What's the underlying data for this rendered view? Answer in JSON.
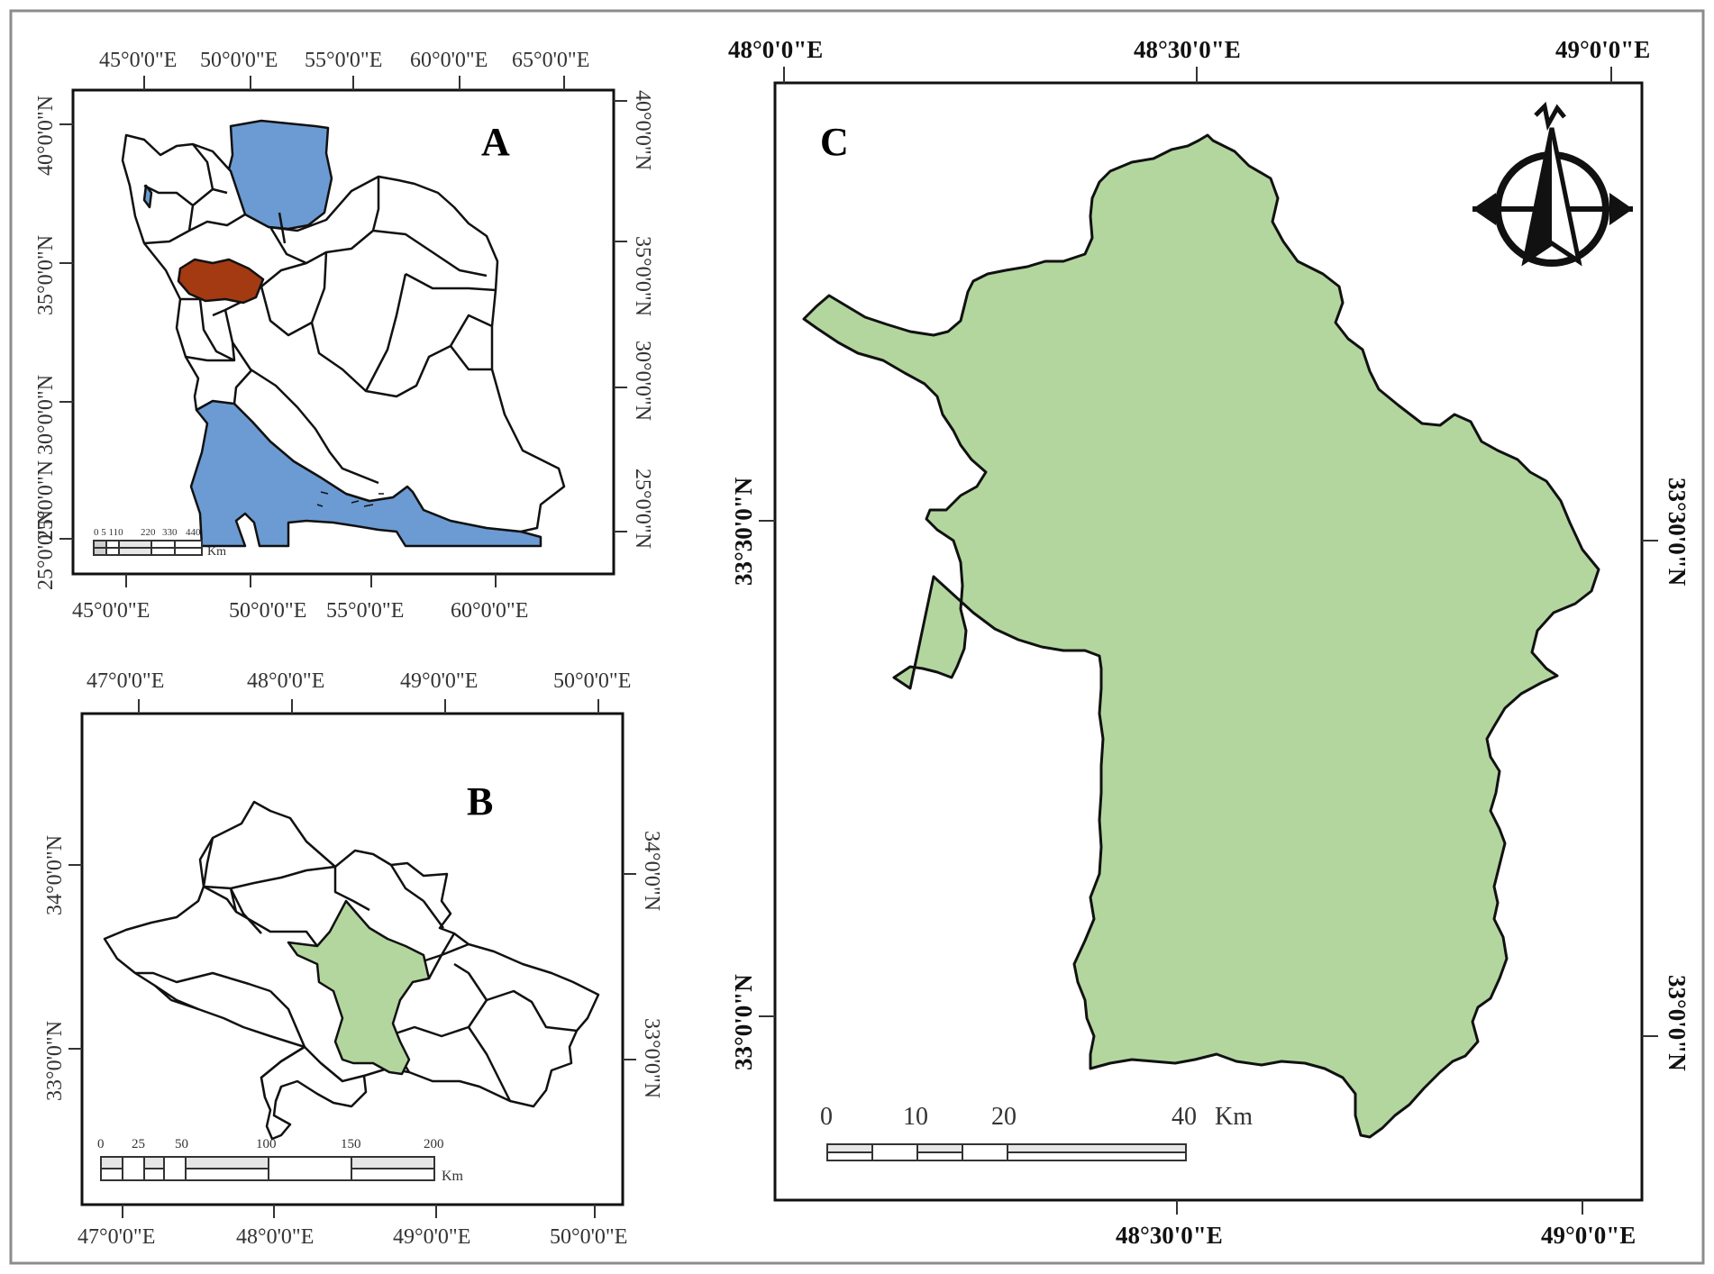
{
  "colors": {
    "frame": "#8c8c8c",
    "study_area_fill": "#b3d69f",
    "water_fill": "#6b9bd2",
    "highlight_province": "#a33a12",
    "boundary_stroke": "#111111"
  },
  "panels": {
    "a": {
      "label": "A",
      "top_ticks": [
        "45°0'0\"E",
        "50°0'0\"E",
        "55°0'0\"E",
        "60°0'0\"E",
        "65°0'0\"E"
      ],
      "bottom_ticks": [
        "45°0'0\"E",
        "50°0'0\"E",
        "55°0'0\"E",
        "60°0'0\"E"
      ],
      "left_ticks": [
        "40°0'0\"N",
        "35°0'0\"N",
        "30°0'0\"N",
        "25°0'0\"N",
        "25°0'0\"N"
      ],
      "right_ticks": [
        "40°0'0\"N",
        "35°0'0\"N",
        "30°0'0\"N",
        "25°0'0\"N"
      ],
      "scale_labels": [
        "0 5 110",
        "220",
        "330",
        "440"
      ],
      "scale_unit": "Km"
    },
    "b": {
      "label": "B",
      "top_ticks": [
        "47°0'0\"E",
        "48°0'0\"E",
        "49°0'0\"E",
        "50°0'0\"E"
      ],
      "bottom_ticks": [
        "47°0'0\"E",
        "48°0'0\"E",
        "49°0'0\"E",
        "50°0'0\"E"
      ],
      "left_ticks": [
        "34°0'0\"N",
        "33°0'0\"N"
      ],
      "right_ticks": [
        "34°0'0\"N",
        "33°0'0\"N"
      ],
      "scale_labels": [
        "0",
        "25",
        "50",
        "100",
        "150",
        "200"
      ],
      "scale_unit": "Km"
    },
    "c": {
      "label": "C",
      "top_ticks": [
        "48°0'0\"E",
        "48°30'0\"E",
        "49°0'0\"E"
      ],
      "bottom_ticks": [
        "48°30'0\"E",
        "49°0'0\"E"
      ],
      "left_ticks": [
        "33°30'0\"N",
        "33°0'0\"N"
      ],
      "right_ticks": [
        "33°30'0\"N",
        "33°0'0\"N"
      ],
      "scale_labels": [
        "0",
        "10",
        "20",
        "40"
      ],
      "scale_unit": "Km"
    }
  },
  "north_arrow_icon": "compass-north-arrow-icon"
}
